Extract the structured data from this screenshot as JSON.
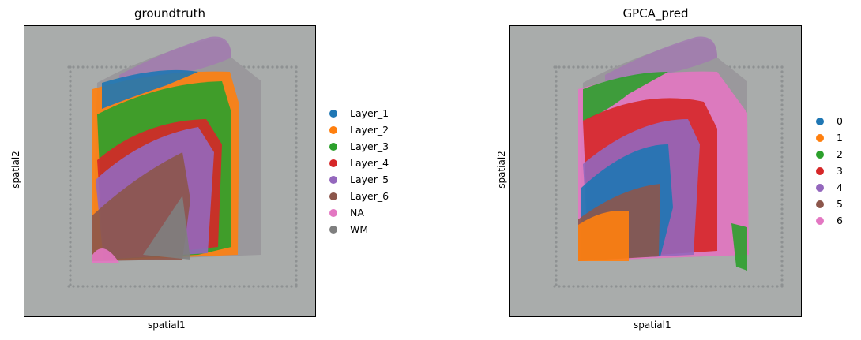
{
  "chart_data": [
    {
      "type": "scatter",
      "title": "groundtruth",
      "xlabel": "spatial1",
      "ylabel": "spatial2",
      "legend_placement": "right",
      "grid": false,
      "series": [
        {
          "name": "Layer_1",
          "color": "#1f77b4"
        },
        {
          "name": "Layer_2",
          "color": "#ff7f0e"
        },
        {
          "name": "Layer_3",
          "color": "#2ca02c"
        },
        {
          "name": "Layer_4",
          "color": "#d62728"
        },
        {
          "name": "Layer_5",
          "color": "#9467bd"
        },
        {
          "name": "Layer_6",
          "color": "#8c564b"
        },
        {
          "name": "NA",
          "color": "#e377c2"
        },
        {
          "name": "WM",
          "color": "#7f7f7f"
        }
      ]
    },
    {
      "type": "scatter",
      "title": "GPCA_pred",
      "xlabel": "spatial1",
      "ylabel": "spatial2",
      "legend_placement": "right",
      "grid": false,
      "series": [
        {
          "name": "0",
          "color": "#1f77b4"
        },
        {
          "name": "1",
          "color": "#ff7f0e"
        },
        {
          "name": "2",
          "color": "#2ca02c"
        },
        {
          "name": "3",
          "color": "#d62728"
        },
        {
          "name": "4",
          "color": "#9467bd"
        },
        {
          "name": "5",
          "color": "#8c564b"
        },
        {
          "name": "6",
          "color": "#e377c2"
        }
      ]
    }
  ]
}
